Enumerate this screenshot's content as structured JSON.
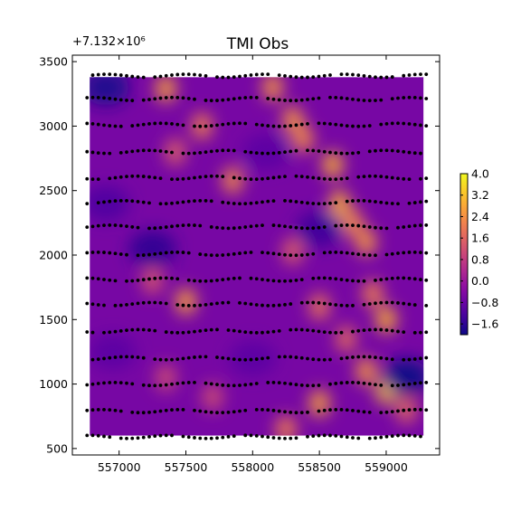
{
  "chart_data": {
    "type": "heatmap",
    "title": "TMI Obs",
    "y_offset_label": "+7.132×10⁶",
    "xlabel": "",
    "ylabel": "",
    "xlim": [
      556650,
      559400
    ],
    "ylim": [
      450,
      3550
    ],
    "x_ticks": [
      557000,
      557500,
      558000,
      558500,
      559000
    ],
    "x_tick_labels": [
      "557000",
      "557500",
      "558000",
      "558500",
      "559000"
    ],
    "y_ticks": [
      500,
      1000,
      1500,
      2000,
      2500,
      3000,
      3500
    ],
    "y_tick_labels": [
      "500",
      "1000",
      "1500",
      "2000",
      "2500",
      "3000",
      "3500"
    ],
    "colormap": "plasma",
    "colorbar_range": [
      -2.0,
      4.0
    ],
    "colorbar_ticks": [
      4.0,
      3.2,
      2.4,
      1.6,
      0.8,
      0.0,
      -0.8,
      -1.6
    ],
    "colorbar_tick_labels": [
      "4.0",
      "3.2",
      "2.4",
      "1.6",
      "0.8",
      "0.0",
      "−0.8",
      "−1.6"
    ],
    "grid": false,
    "legend": "none",
    "field_extent": {
      "x": [
        556780,
        559280
      ],
      "y": [
        600,
        3380
      ]
    },
    "survey_lines_y": [
      3390,
      3210,
      3010,
      2800,
      2600,
      2410,
      2220,
      2010,
      1810,
      1620,
      1410,
      1200,
      1000,
      790,
      590
    ],
    "survey_lines_x": [
      556760,
      559300
    ],
    "anomalies": [
      {
        "x": 557350,
        "y": 3290,
        "value": 2.8
      },
      {
        "x": 557620,
        "y": 3000,
        "value": 2.2
      },
      {
        "x": 557420,
        "y": 2800,
        "value": 1.6
      },
      {
        "x": 557850,
        "y": 2580,
        "value": 2.4
      },
      {
        "x": 558150,
        "y": 3300,
        "value": 2.6
      },
      {
        "x": 558300,
        "y": 3050,
        "value": 2.6
      },
      {
        "x": 558380,
        "y": 2900,
        "value": 2.4
      },
      {
        "x": 558600,
        "y": 2700,
        "value": 3.0
      },
      {
        "x": 558650,
        "y": 2400,
        "value": 3.0
      },
      {
        "x": 558750,
        "y": 2250,
        "value": 2.4
      },
      {
        "x": 558850,
        "y": 2100,
        "value": 2.6
      },
      {
        "x": 558300,
        "y": 2030,
        "value": 1.6
      },
      {
        "x": 557500,
        "y": 1640,
        "value": 2.8
      },
      {
        "x": 557250,
        "y": 1800,
        "value": 1.4
      },
      {
        "x": 558500,
        "y": 1600,
        "value": 2.0
      },
      {
        "x": 558900,
        "y": 1700,
        "value": 2.2
      },
      {
        "x": 559000,
        "y": 1500,
        "value": 3.0
      },
      {
        "x": 558700,
        "y": 1350,
        "value": 1.8
      },
      {
        "x": 558850,
        "y": 1100,
        "value": 2.6
      },
      {
        "x": 559000,
        "y": 950,
        "value": 3.4
      },
      {
        "x": 559150,
        "y": 800,
        "value": 1.8
      },
      {
        "x": 558500,
        "y": 850,
        "value": 2.8
      },
      {
        "x": 558250,
        "y": 650,
        "value": 2.2
      },
      {
        "x": 557350,
        "y": 1050,
        "value": 1.2
      },
      {
        "x": 557700,
        "y": 900,
        "value": 1.2
      },
      {
        "x": 556900,
        "y": 3300,
        "value": -1.8
      },
      {
        "x": 557250,
        "y": 2050,
        "value": -1.6
      },
      {
        "x": 558500,
        "y": 2200,
        "value": -1.4
      },
      {
        "x": 559150,
        "y": 1050,
        "value": -2.0
      },
      {
        "x": 556900,
        "y": 2400,
        "value": -1.2
      },
      {
        "x": 558000,
        "y": 1200,
        "value": -1.0
      },
      {
        "x": 556950,
        "y": 1250,
        "value": -1.0
      },
      {
        "x": 558100,
        "y": 2800,
        "value": -1.0
      }
    ]
  }
}
